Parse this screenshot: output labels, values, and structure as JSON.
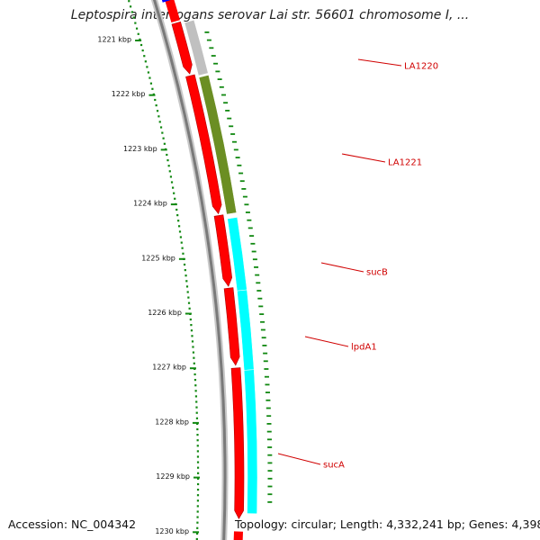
{
  "title": "Leptospira interrogans serovar Lai str. 56601 chromosome I, ...",
  "footer": {
    "accession": "Accession: NC_004342",
    "summary": "Topology: circular; Length: 4,332,241 bp; Genes: 4,398"
  },
  "ruler": {
    "labels": [
      "1221 kbp",
      "1222 kbp",
      "1223 kbp",
      "1224 kbp",
      "1225 kbp",
      "1226 kbp",
      "1227 kbp",
      "1228 kbp",
      "1229 kbp",
      "1230 kbp"
    ],
    "tick_color": "#118811"
  },
  "features": {
    "reverse_color": "#ff0000",
    "forward_segments": [
      {
        "name": "LA1220",
        "color": "#c0c0c0"
      },
      {
        "name": "LA1221",
        "color": "#6b8e23"
      },
      {
        "name": "sucB",
        "color": "#00ffff"
      },
      {
        "name": "lpdA1",
        "color": "#00ffff"
      },
      {
        "name": "sucA",
        "color": "#00ffff"
      }
    ],
    "top_marker_color": "#0000ff"
  },
  "gene_labels": [
    "LA1220",
    "LA1221",
    "sucB",
    "lpdA1",
    "sucA"
  ]
}
